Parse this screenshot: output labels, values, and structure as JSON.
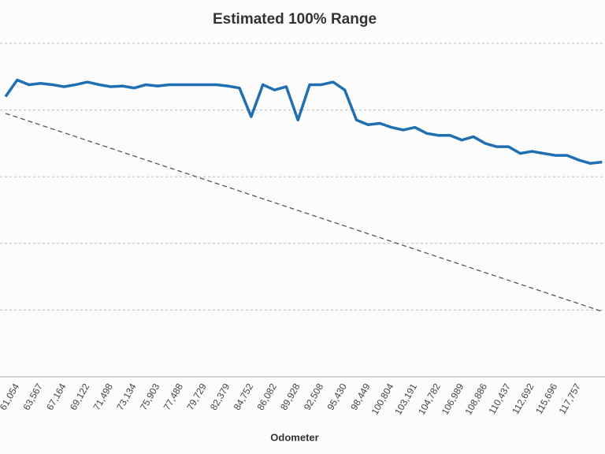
{
  "chart_data": {
    "type": "line",
    "title": "Estimated 100% Range",
    "x_label": "Odometer",
    "categories": [
      null,
      "61,054",
      null,
      "63,567",
      null,
      "67,164",
      null,
      "69,122",
      null,
      "71,498",
      null,
      "73,134",
      null,
      "75,903",
      null,
      "77,488",
      null,
      "79,729",
      null,
      "82,379",
      null,
      "84,752",
      null,
      "86,082",
      null,
      "89,928",
      null,
      "92,508",
      null,
      "95,430",
      null,
      "98,449",
      null,
      "100,804",
      null,
      "103,191",
      null,
      "104,782",
      null,
      "106,989",
      null,
      "108,886",
      null,
      "110,437",
      null,
      "112,692",
      null,
      "115,696",
      null,
      "117,757",
      null,
      null
    ],
    "series": [
      {
        "color": "#1f6fb2",
        "values": [
          4.2,
          4.45,
          4.38,
          4.4,
          4.38,
          4.35,
          4.38,
          4.42,
          4.38,
          4.35,
          4.36,
          4.33,
          4.38,
          4.36,
          4.38,
          4.38,
          4.38,
          4.38,
          4.38,
          4.36,
          4.33,
          3.9,
          4.38,
          4.3,
          4.35,
          3.85,
          4.38,
          4.38,
          4.42,
          4.3,
          3.85,
          3.78,
          3.8,
          3.74,
          3.7,
          3.74,
          3.65,
          3.62,
          3.62,
          3.55,
          3.6,
          3.5,
          3.45,
          3.45,
          3.35,
          3.38,
          3.35,
          3.32,
          3.32,
          3.25,
          3.2,
          3.22
        ]
      }
    ],
    "trend": {
      "color": "#555",
      "values": [
        3.95,
        0.98
      ]
    },
    "ylim": [
      0,
      5
    ],
    "yticks": [
      1,
      2,
      3,
      4,
      5
    ],
    "grid": true
  }
}
